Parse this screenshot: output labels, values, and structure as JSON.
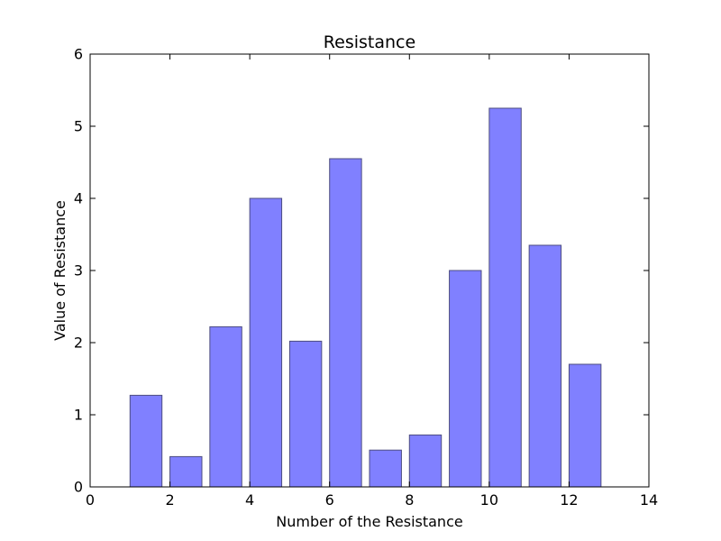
{
  "chart_data": {
    "type": "bar",
    "title": "Resistance",
    "xlabel": "Number of the Resistance",
    "ylabel": "Value of Resistance",
    "x": [
      1,
      2,
      3,
      4,
      5,
      6,
      7,
      8,
      9,
      10,
      11,
      12
    ],
    "values": [
      1.27,
      0.42,
      2.22,
      4.0,
      2.02,
      4.55,
      0.51,
      0.72,
      3.0,
      5.25,
      3.35,
      1.7
    ],
    "bar_width": 0.8,
    "xlim": [
      0,
      14
    ],
    "ylim": [
      0,
      6
    ],
    "xticks": [
      "0",
      "2",
      "4",
      "6",
      "8",
      "10",
      "12",
      "14"
    ],
    "yticks": [
      "0",
      "1",
      "2",
      "3",
      "4",
      "5",
      "6"
    ],
    "bar_color": "#8080ff",
    "bar_edge_color": "#4d4d80",
    "grid": false,
    "legend": "none"
  }
}
